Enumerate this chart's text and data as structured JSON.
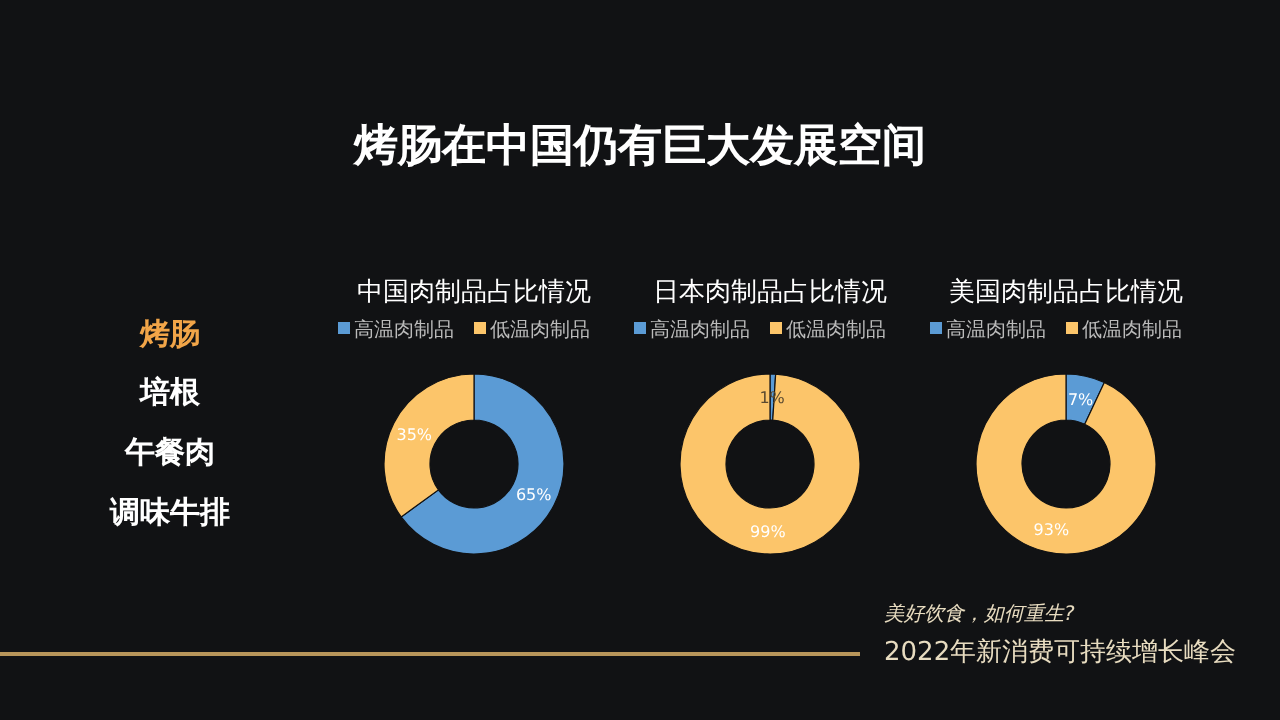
{
  "chart_data": [
    {
      "type": "other",
      "title": "烤肠在中国仍有巨大发展空间",
      "annotations": [
        "烤肠",
        "培根",
        "午餐肉",
        "调味牛排",
        "美好饮食，如何重生?",
        "2022年新消费可持续增长峰会"
      ]
    },
    {
      "type": "donut",
      "title": "中国肉制品占比情况",
      "categories": [
        "高温肉制品",
        "低温肉制品"
      ],
      "values": [
        65,
        35
      ],
      "colors": [
        "#5b9bd5",
        "#fcc56a"
      ],
      "value_labels": [
        "65%",
        "35%"
      ],
      "legend": "top"
    },
    {
      "type": "donut",
      "title": "日本肉制品占比情况",
      "categories": [
        "高温肉制品",
        "低温肉制品"
      ],
      "values": [
        1,
        99
      ],
      "colors": [
        "#5b9bd5",
        "#fcc56a"
      ],
      "value_labels": [
        "1%",
        "99%"
      ],
      "legend": "top"
    },
    {
      "type": "donut",
      "title": "美国肉制品占比情况",
      "categories": [
        "高温肉制品",
        "低温肉制品"
      ],
      "values": [
        7,
        93
      ],
      "colors": [
        "#5b9bd5",
        "#fcc56a"
      ],
      "value_labels": [
        "7%",
        "93%"
      ],
      "legend": "top"
    }
  ]
}
